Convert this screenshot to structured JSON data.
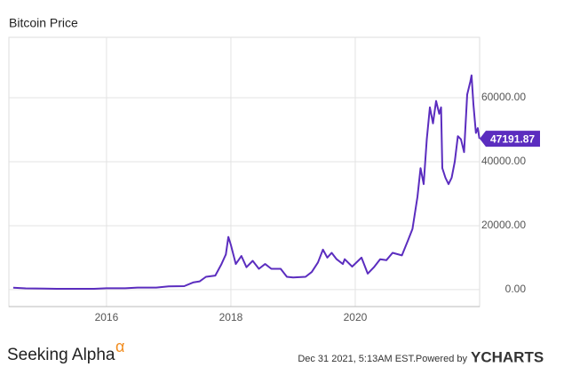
{
  "chart_data": {
    "type": "line",
    "title": "Bitcoin Price",
    "x": [
      2014.5,
      2014.7,
      2015.0,
      2015.2,
      2015.5,
      2015.8,
      2016.0,
      2016.3,
      2016.5,
      2016.8,
      2017.0,
      2017.25,
      2017.4,
      2017.5,
      2017.6,
      2017.75,
      2017.85,
      2017.92,
      2017.96,
      2018.0,
      2018.08,
      2018.17,
      2018.25,
      2018.35,
      2018.45,
      2018.55,
      2018.65,
      2018.8,
      2018.9,
      2019.0,
      2019.2,
      2019.3,
      2019.4,
      2019.48,
      2019.55,
      2019.62,
      2019.7,
      2019.8,
      2019.83,
      2019.95,
      2020.1,
      2020.2,
      2020.3,
      2020.4,
      2020.5,
      2020.6,
      2020.75,
      2020.85,
      2020.92,
      2021.0,
      2021.05,
      2021.1,
      2021.15,
      2021.2,
      2021.25,
      2021.3,
      2021.35,
      2021.38,
      2021.4,
      2021.45,
      2021.5,
      2021.55,
      2021.6,
      2021.65,
      2021.7,
      2021.75,
      2021.8,
      2021.85,
      2021.87,
      2021.9,
      2021.94,
      2021.97,
      2021.997
    ],
    "values": [
      600,
      400,
      300,
      250,
      250,
      250,
      430,
      420,
      650,
      650,
      1000,
      1100,
      2300,
      2600,
      4000,
      4400,
      8000,
      11000,
      16500,
      14000,
      8000,
      10500,
      7000,
      9000,
      6500,
      8000,
      6500,
      6500,
      4000,
      3800,
      4000,
      5500,
      8500,
      12500,
      10000,
      11500,
      9500,
      8000,
      9500,
      7200,
      10000,
      5000,
      7000,
      9500,
      9200,
      11500,
      10700,
      15500,
      19000,
      29000,
      38000,
      33000,
      47000,
      57000,
      52000,
      59000,
      55000,
      57000,
      38000,
      35000,
      33000,
      35000,
      40000,
      48000,
      47000,
      43000,
      61000,
      65000,
      67000,
      58000,
      49000,
      50500,
      47191.87
    ],
    "color": "#5b2dbf",
    "xlim": [
      2014.43,
      2022.0
    ],
    "xticks": [
      2016,
      2018,
      2020
    ],
    "ylim": [
      -5300,
      78900
    ],
    "yticks": [
      {
        "value": 0,
        "label": "0.00"
      },
      {
        "value": 20000,
        "label": "20000.00"
      },
      {
        "value": 40000,
        "label": "40000.00"
      },
      {
        "value": 60000,
        "label": "60000.00"
      }
    ],
    "grid": true
  },
  "footer": {
    "logo": "Seeking Alpha",
    "logo_mark": "α",
    "timestamp": "Dec 31 2021, 5:13AM EST.",
    "powered_by": "Powered by",
    "brand": "YCHARTS"
  }
}
